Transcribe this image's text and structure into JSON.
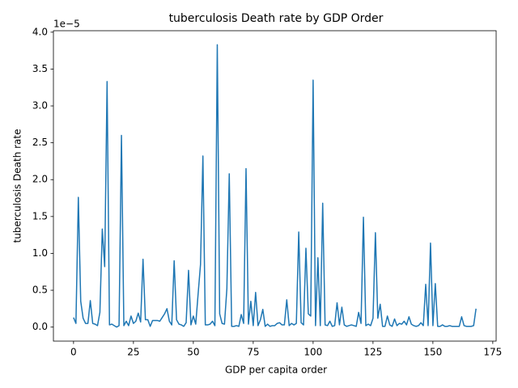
{
  "chart_data": {
    "type": "line",
    "title": "tuberculosis Death rate by GDP Order",
    "x_label": "GDP per capita order",
    "y_label": "tuberculosis Death rate",
    "y_offset_label": "1e−5",
    "x": [
      0,
      1,
      2,
      3,
      4,
      5,
      6,
      7,
      8,
      9,
      10,
      11,
      12,
      13,
      14,
      15,
      16,
      17,
      18,
      19,
      20,
      21,
      22,
      23,
      24,
      25,
      26,
      27,
      28,
      29,
      30,
      31,
      32,
      33,
      34,
      35,
      36,
      37,
      38,
      39,
      40,
      41,
      42,
      43,
      44,
      45,
      46,
      47,
      48,
      49,
      50,
      51,
      52,
      53,
      54,
      55,
      56,
      57,
      58,
      59,
      60,
      61,
      62,
      63,
      64,
      65,
      66,
      67,
      68,
      69,
      70,
      71,
      72,
      73,
      74,
      75,
      76,
      77,
      78,
      79,
      80,
      81,
      82,
      83,
      84,
      85,
      86,
      87,
      88,
      89,
      90,
      91,
      92,
      93,
      94,
      95,
      96,
      97,
      98,
      99,
      100,
      101,
      102,
      103,
      104,
      105,
      106,
      107,
      108,
      109,
      110,
      111,
      112,
      113,
      114,
      115,
      116,
      117,
      118,
      119,
      120,
      121,
      122,
      123,
      124,
      125,
      126,
      127,
      128,
      129,
      130,
      131,
      132,
      133,
      134,
      135,
      136,
      137,
      138,
      139,
      140,
      141,
      142,
      143,
      144,
      145,
      146,
      147,
      148,
      149,
      150,
      151,
      152,
      153,
      154,
      155,
      156,
      157,
      158,
      159,
      160,
      161,
      162,
      163,
      164,
      165,
      166,
      167,
      168
    ],
    "series": [
      {
        "name": "tuberculosis Death rate",
        "color": "#1f77b4",
        "values": [
          0.13,
          0.05,
          1.76,
          0.35,
          0.12,
          0.05,
          0.05,
          0.36,
          0.05,
          0.04,
          0.02,
          0.2,
          1.33,
          0.82,
          3.33,
          0.03,
          0.04,
          0.02,
          0.0,
          0.02,
          2.6,
          0.02,
          0.08,
          0.02,
          0.15,
          0.05,
          0.08,
          0.19,
          0.07,
          0.92,
          0.1,
          0.1,
          0.01,
          0.09,
          0.09,
          0.09,
          0.08,
          0.13,
          0.18,
          0.25,
          0.08,
          0.03,
          0.9,
          0.1,
          0.04,
          0.03,
          0.01,
          0.06,
          0.77,
          0.03,
          0.15,
          0.04,
          0.45,
          0.85,
          2.32,
          0.03,
          0.03,
          0.04,
          0.08,
          0.02,
          3.83,
          0.18,
          0.05,
          0.04,
          0.52,
          2.08,
          0.01,
          0.01,
          0.02,
          0.01,
          0.17,
          0.05,
          2.15,
          0.04,
          0.35,
          0.02,
          0.47,
          0.02,
          0.1,
          0.24,
          0.01,
          0.04,
          0.01,
          0.02,
          0.02,
          0.05,
          0.06,
          0.03,
          0.03,
          0.37,
          0.02,
          0.05,
          0.03,
          0.05,
          1.29,
          0.06,
          0.03,
          1.07,
          0.18,
          0.15,
          3.35,
          0.02,
          0.94,
          0.02,
          1.68,
          0.03,
          0.02,
          0.08,
          0.01,
          0.02,
          0.33,
          0.03,
          0.27,
          0.03,
          0.01,
          0.02,
          0.03,
          0.02,
          0.01,
          0.2,
          0.05,
          1.49,
          0.02,
          0.04,
          0.02,
          0.12,
          1.28,
          0.12,
          0.31,
          0.01,
          0.01,
          0.15,
          0.03,
          0.01,
          0.11,
          0.02,
          0.05,
          0.04,
          0.08,
          0.03,
          0.14,
          0.04,
          0.02,
          0.01,
          0.02,
          0.06,
          0.02,
          0.58,
          0.02,
          1.14,
          0.02,
          0.59,
          0.01,
          0.01,
          0.03,
          0.01,
          0.01,
          0.02,
          0.01,
          0.01,
          0.01,
          0.01,
          0.14,
          0.02,
          0.01,
          0.01,
          0.01,
          0.02,
          0.25
        ]
      }
    ],
    "xlim": [
      -8.4,
      176.4
    ],
    "ylim": [
      -0.19,
      4.02
    ],
    "xticks": [
      0,
      25,
      50,
      75,
      100,
      125,
      150,
      175
    ],
    "yticks": [
      {
        "value": 0,
        "label": "0.0"
      },
      {
        "value": 0.5,
        "label": "0.5"
      },
      {
        "value": 1,
        "label": "1.0"
      },
      {
        "value": 1.5,
        "label": "1.5"
      },
      {
        "value": 2,
        "label": "2.0"
      },
      {
        "value": 2.5,
        "label": "2.5"
      },
      {
        "value": 3,
        "label": "3.0"
      },
      {
        "value": 3.5,
        "label": "3.5"
      },
      {
        "value": 4,
        "label": "4.0"
      }
    ],
    "grid": false
  }
}
